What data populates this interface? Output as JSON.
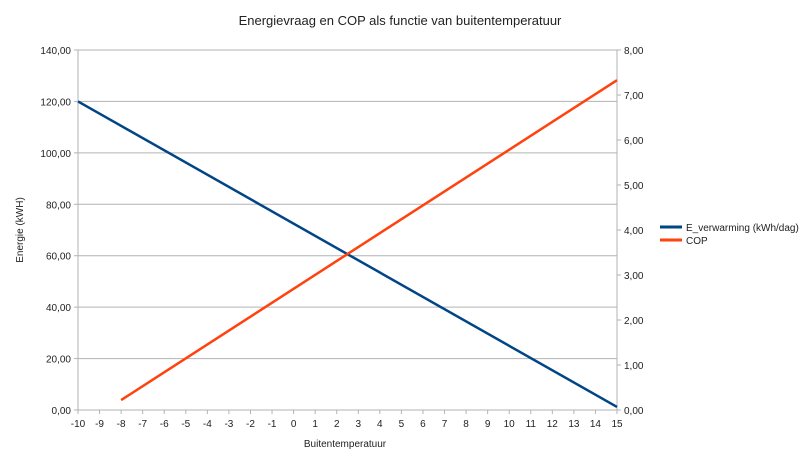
{
  "chart_data": {
    "type": "line",
    "title": "Energievraag en COP als functie van buitentemperatuur",
    "xlabel": "Buitentemperatuur",
    "ylabel": "Energie (kWH)",
    "xlim": [
      -10,
      15
    ],
    "ylim": [
      0,
      140
    ],
    "y2lim": [
      0,
      8
    ],
    "x_ticks": [
      "-10",
      "-9",
      "-8",
      "-7",
      "-6",
      "-5",
      "-4",
      "-3",
      "-2",
      "-1",
      "0",
      "1",
      "2",
      "3",
      "4",
      "5",
      "6",
      "7",
      "8",
      "9",
      "10",
      "11",
      "12",
      "13",
      "14",
      "15"
    ],
    "y_ticks": [
      "0,00",
      "20,00",
      "40,00",
      "60,00",
      "80,00",
      "100,00",
      "120,00",
      "140,00"
    ],
    "y2_ticks": [
      "0,00",
      "1,00",
      "2,00",
      "3,00",
      "4,00",
      "5,00",
      "6,00",
      "7,00",
      "8,00"
    ],
    "grid": true,
    "legend": "right",
    "series": [
      {
        "name": "E_verwarming (kWh/dag)",
        "axis": "left",
        "color": "#004586",
        "x": [
          -10,
          15
        ],
        "y": [
          120,
          1.2
        ]
      },
      {
        "name": "COP",
        "axis": "right",
        "color": "#ff420e",
        "x": [
          -8,
          15
        ],
        "y": [
          0.22,
          7.33
        ]
      }
    ]
  }
}
